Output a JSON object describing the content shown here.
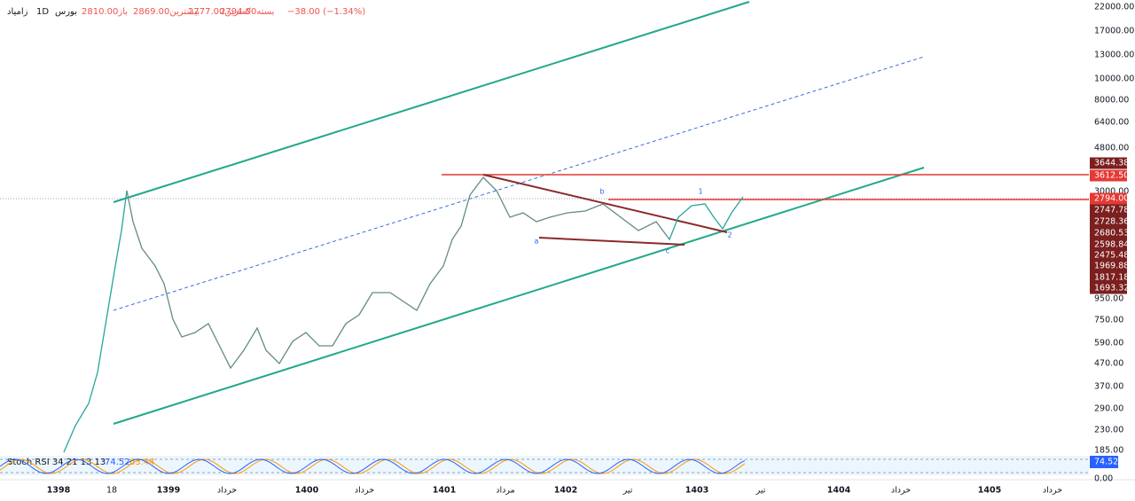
{
  "header": {
    "symbol": "زامیاد",
    "interval": "1D",
    "exchange": "بورس",
    "open": "باز2810.00",
    "high": "بیشترین2869.00",
    "low": "کمترین2777.00",
    "close": "بسته2794.00",
    "change": "−38.00 (−1.34%)"
  },
  "price_axis": {
    "labels": [
      "22000.00",
      "17000.00",
      "13000.00",
      "10000.00",
      "8000.00",
      "6400.00",
      "4800.00",
      "3000.00",
      "950.00",
      "750.00",
      "590.00",
      "470.00",
      "370.00",
      "290.00",
      "230.00",
      "185.00"
    ]
  },
  "price_tags": [
    "3644.38",
    "3612.50",
    "2794.00",
    "2747.78",
    "2728.36",
    "2680.53",
    "2598.84",
    "2475.48",
    "1969.88",
    "1817.18",
    "1693.32"
  ],
  "time_axis": {
    "labels": [
      "1398",
      "18",
      "1399",
      "خرداد",
      "1400",
      "خرداد",
      "1401",
      "مرداد",
      "1402",
      "تیر",
      "1403",
      "تیر",
      "1404",
      "خرداد",
      "1405",
      "خرداد"
    ]
  },
  "wave_labels": [
    "a",
    "b",
    "c",
    "1",
    "2"
  ],
  "indicator": {
    "label": "Stoch RSI 34 21 13 13",
    "k": "74.52",
    "d": "63.44",
    "value_tag": "74.52",
    "axis_label": "0.00"
  }
}
